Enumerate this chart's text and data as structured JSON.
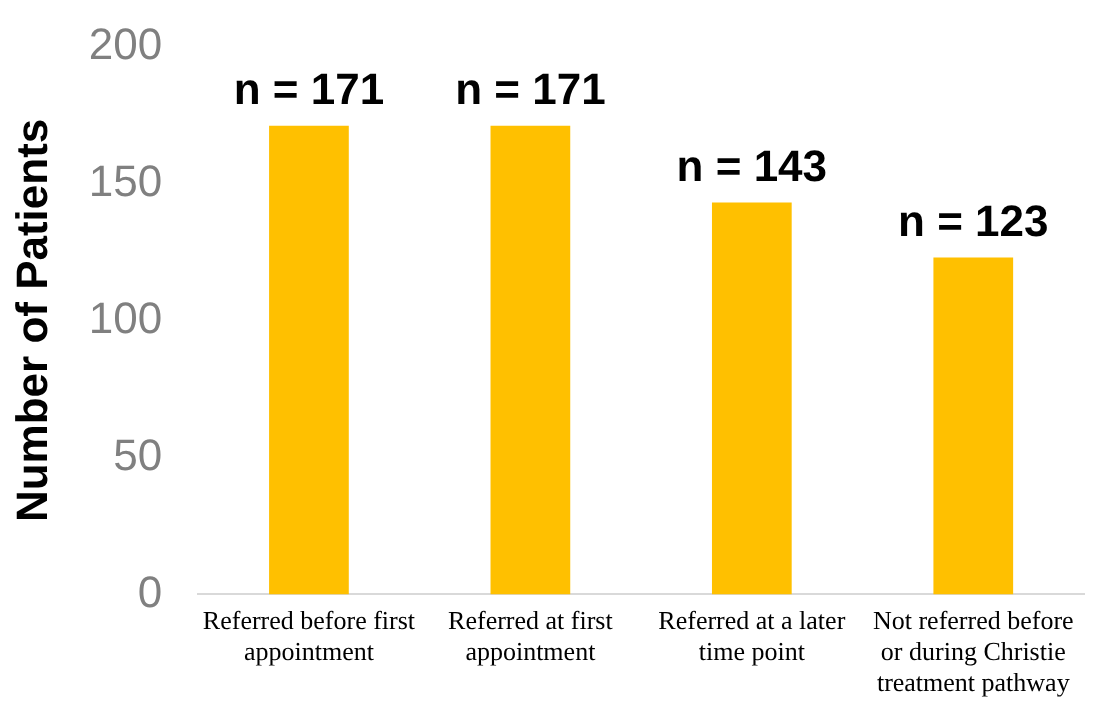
{
  "chart_data": {
    "type": "bar",
    "ylabel": "Number of Patients",
    "categories": [
      "Referred before first appointment",
      "Referred at first appointment",
      "Referred at a later time point",
      "Not referred before or during Christie treatment pathway"
    ],
    "values": [
      171,
      171,
      143,
      123
    ],
    "color": "#ffc000",
    "value_labels": [
      "n = 171",
      "n = 171",
      "n = 143",
      "n = 123"
    ],
    "ylim": [
      0,
      200
    ],
    "yticks": [
      0,
      50,
      100,
      150,
      200
    ],
    "grid": false
  }
}
